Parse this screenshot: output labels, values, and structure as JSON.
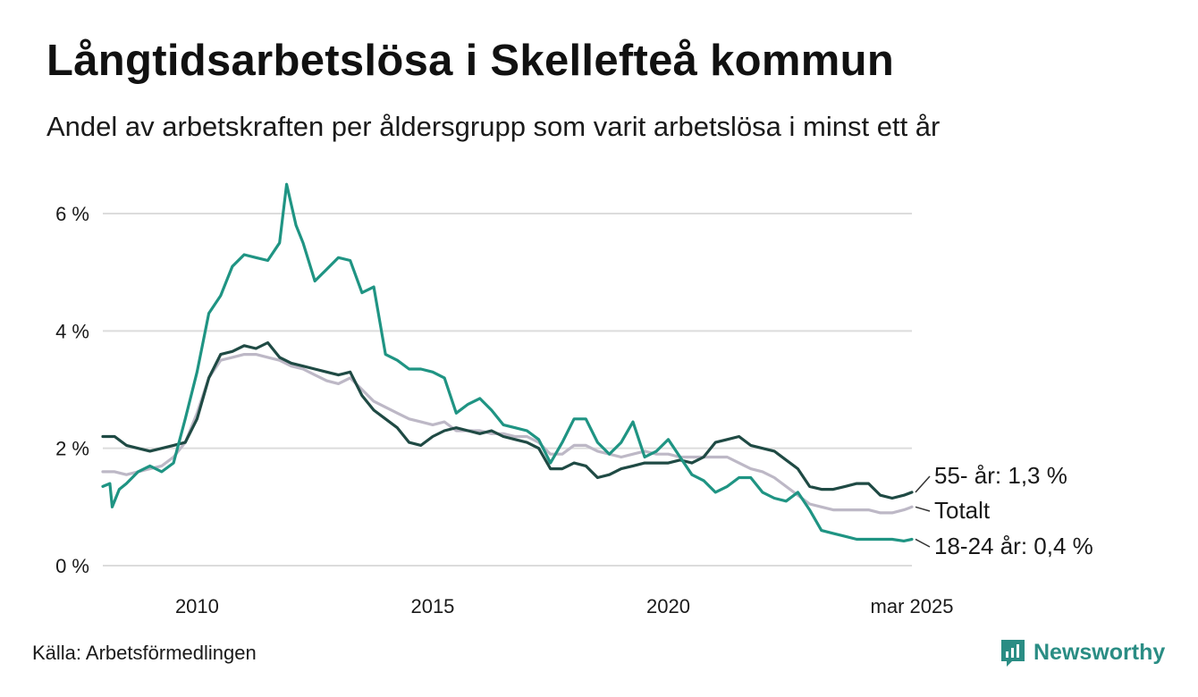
{
  "title": "Långtidsarbetslösa i Skellefteå kommun",
  "subtitle": "Andel av arbetskraften per åldersgrupp som varit arbetslösa i minst ett år",
  "source": "Källa: Arbetsförmedlingen",
  "brand": {
    "name": "Newsworthy",
    "color": "#2a8d84"
  },
  "chart_data": {
    "type": "line",
    "title": "Långtidsarbetslösa i Skellefteå kommun",
    "subtitle": "Andel av arbetskraften per åldersgrupp som varit arbetslösa i minst ett år",
    "xlabel": "",
    "ylabel": "",
    "xlim": [
      2008.0,
      2025.17
    ],
    "ylim": [
      0,
      6.5
    ],
    "grid": true,
    "legend": "direct labels at line ends",
    "x_ticks": [
      {
        "value": 2010,
        "label": "2010"
      },
      {
        "value": 2015,
        "label": "2015"
      },
      {
        "value": 2020,
        "label": "2020"
      },
      {
        "value": 2025.17,
        "label": "mar 2025"
      }
    ],
    "y_ticks": [
      {
        "value": 0,
        "label": "0 %"
      },
      {
        "value": 2,
        "label": "2 %"
      },
      {
        "value": 4,
        "label": "4 %"
      },
      {
        "value": 6,
        "label": "6 %"
      }
    ],
    "end_labels": [
      {
        "series": "55- år",
        "text": "55- år: 1,3 %"
      },
      {
        "series": "Totalt",
        "text": "Totalt"
      },
      {
        "series": "18-24 år",
        "text": "18-24 år: 0,4 %"
      }
    ],
    "series": [
      {
        "name": "Totalt",
        "color": "#bdb8c6",
        "points": [
          [
            2008.0,
            1.6
          ],
          [
            2008.25,
            1.6
          ],
          [
            2008.5,
            1.55
          ],
          [
            2008.75,
            1.6
          ],
          [
            2009.0,
            1.65
          ],
          [
            2009.25,
            1.7
          ],
          [
            2009.5,
            1.85
          ],
          [
            2009.75,
            2.1
          ],
          [
            2010.0,
            2.6
          ],
          [
            2010.25,
            3.2
          ],
          [
            2010.5,
            3.5
          ],
          [
            2010.75,
            3.55
          ],
          [
            2011.0,
            3.6
          ],
          [
            2011.25,
            3.6
          ],
          [
            2011.5,
            3.55
          ],
          [
            2011.75,
            3.5
          ],
          [
            2012.0,
            3.4
          ],
          [
            2012.25,
            3.35
          ],
          [
            2012.5,
            3.25
          ],
          [
            2012.75,
            3.15
          ],
          [
            2013.0,
            3.1
          ],
          [
            2013.25,
            3.2
          ],
          [
            2013.5,
            3.0
          ],
          [
            2013.75,
            2.8
          ],
          [
            2014.0,
            2.7
          ],
          [
            2014.25,
            2.6
          ],
          [
            2014.5,
            2.5
          ],
          [
            2014.75,
            2.45
          ],
          [
            2015.0,
            2.4
          ],
          [
            2015.25,
            2.45
          ],
          [
            2015.5,
            2.3
          ],
          [
            2015.75,
            2.3
          ],
          [
            2016.0,
            2.3
          ],
          [
            2016.25,
            2.25
          ],
          [
            2016.5,
            2.25
          ],
          [
            2016.75,
            2.2
          ],
          [
            2017.0,
            2.2
          ],
          [
            2017.25,
            2.1
          ],
          [
            2017.5,
            1.9
          ],
          [
            2017.75,
            1.9
          ],
          [
            2018.0,
            2.05
          ],
          [
            2018.25,
            2.05
          ],
          [
            2018.5,
            1.95
          ],
          [
            2018.75,
            1.9
          ],
          [
            2019.0,
            1.85
          ],
          [
            2019.25,
            1.9
          ],
          [
            2019.5,
            1.95
          ],
          [
            2019.75,
            1.9
          ],
          [
            2020.0,
            1.9
          ],
          [
            2020.25,
            1.85
          ],
          [
            2020.5,
            1.85
          ],
          [
            2020.75,
            1.85
          ],
          [
            2021.0,
            1.85
          ],
          [
            2021.25,
            1.85
          ],
          [
            2021.5,
            1.75
          ],
          [
            2021.75,
            1.65
          ],
          [
            2022.0,
            1.6
          ],
          [
            2022.25,
            1.5
          ],
          [
            2022.5,
            1.35
          ],
          [
            2022.75,
            1.2
          ],
          [
            2023.0,
            1.05
          ],
          [
            2023.25,
            1.0
          ],
          [
            2023.5,
            0.95
          ],
          [
            2023.75,
            0.95
          ],
          [
            2024.0,
            0.95
          ],
          [
            2024.25,
            0.95
          ],
          [
            2024.5,
            0.9
          ],
          [
            2024.75,
            0.9
          ],
          [
            2025.0,
            0.95
          ],
          [
            2025.17,
            1.0
          ]
        ]
      },
      {
        "name": "55- år",
        "color": "#1f4a44",
        "points": [
          [
            2008.0,
            2.2
          ],
          [
            2008.25,
            2.2
          ],
          [
            2008.5,
            2.05
          ],
          [
            2008.75,
            2.0
          ],
          [
            2009.0,
            1.95
          ],
          [
            2009.25,
            2.0
          ],
          [
            2009.5,
            2.05
          ],
          [
            2009.75,
            2.1
          ],
          [
            2010.0,
            2.5
          ],
          [
            2010.25,
            3.2
          ],
          [
            2010.5,
            3.6
          ],
          [
            2010.75,
            3.65
          ],
          [
            2011.0,
            3.75
          ],
          [
            2011.25,
            3.7
          ],
          [
            2011.5,
            3.8
          ],
          [
            2011.75,
            3.55
          ],
          [
            2012.0,
            3.45
          ],
          [
            2012.25,
            3.4
          ],
          [
            2012.5,
            3.35
          ],
          [
            2012.75,
            3.3
          ],
          [
            2013.0,
            3.25
          ],
          [
            2013.25,
            3.3
          ],
          [
            2013.5,
            2.9
          ],
          [
            2013.75,
            2.65
          ],
          [
            2014.0,
            2.5
          ],
          [
            2014.25,
            2.35
          ],
          [
            2014.5,
            2.1
          ],
          [
            2014.75,
            2.05
          ],
          [
            2015.0,
            2.2
          ],
          [
            2015.25,
            2.3
          ],
          [
            2015.5,
            2.35
          ],
          [
            2015.75,
            2.3
          ],
          [
            2016.0,
            2.25
          ],
          [
            2016.25,
            2.3
          ],
          [
            2016.5,
            2.2
          ],
          [
            2016.75,
            2.15
          ],
          [
            2017.0,
            2.1
          ],
          [
            2017.25,
            2.0
          ],
          [
            2017.5,
            1.65
          ],
          [
            2017.75,
            1.65
          ],
          [
            2018.0,
            1.75
          ],
          [
            2018.25,
            1.7
          ],
          [
            2018.5,
            1.5
          ],
          [
            2018.75,
            1.55
          ],
          [
            2019.0,
            1.65
          ],
          [
            2019.25,
            1.7
          ],
          [
            2019.5,
            1.75
          ],
          [
            2019.75,
            1.75
          ],
          [
            2020.0,
            1.75
          ],
          [
            2020.25,
            1.8
          ],
          [
            2020.5,
            1.75
          ],
          [
            2020.75,
            1.85
          ],
          [
            2021.0,
            2.1
          ],
          [
            2021.25,
            2.15
          ],
          [
            2021.5,
            2.2
          ],
          [
            2021.75,
            2.05
          ],
          [
            2022.0,
            2.0
          ],
          [
            2022.25,
            1.95
          ],
          [
            2022.5,
            1.8
          ],
          [
            2022.75,
            1.65
          ],
          [
            2023.0,
            1.35
          ],
          [
            2023.25,
            1.3
          ],
          [
            2023.5,
            1.3
          ],
          [
            2023.75,
            1.35
          ],
          [
            2024.0,
            1.4
          ],
          [
            2024.25,
            1.4
          ],
          [
            2024.5,
            1.2
          ],
          [
            2024.75,
            1.15
          ],
          [
            2025.0,
            1.2
          ],
          [
            2025.17,
            1.25
          ]
        ]
      },
      {
        "name": "18-24 år",
        "color": "#1f9483",
        "points": [
          [
            2008.0,
            1.35
          ],
          [
            2008.15,
            1.4
          ],
          [
            2008.2,
            1.0
          ],
          [
            2008.35,
            1.3
          ],
          [
            2008.5,
            1.4
          ],
          [
            2008.75,
            1.6
          ],
          [
            2009.0,
            1.7
          ],
          [
            2009.25,
            1.6
          ],
          [
            2009.5,
            1.75
          ],
          [
            2009.75,
            2.5
          ],
          [
            2010.0,
            3.3
          ],
          [
            2010.25,
            4.3
          ],
          [
            2010.5,
            4.6
          ],
          [
            2010.75,
            5.1
          ],
          [
            2011.0,
            5.3
          ],
          [
            2011.25,
            5.25
          ],
          [
            2011.5,
            5.2
          ],
          [
            2011.75,
            5.5
          ],
          [
            2011.9,
            6.5
          ],
          [
            2012.1,
            5.8
          ],
          [
            2012.25,
            5.5
          ],
          [
            2012.5,
            4.85
          ],
          [
            2012.75,
            5.05
          ],
          [
            2013.0,
            5.25
          ],
          [
            2013.25,
            5.2
          ],
          [
            2013.5,
            4.65
          ],
          [
            2013.75,
            4.75
          ],
          [
            2014.0,
            3.6
          ],
          [
            2014.25,
            3.5
          ],
          [
            2014.5,
            3.35
          ],
          [
            2014.75,
            3.35
          ],
          [
            2015.0,
            3.3
          ],
          [
            2015.25,
            3.2
          ],
          [
            2015.5,
            2.6
          ],
          [
            2015.75,
            2.75
          ],
          [
            2016.0,
            2.85
          ],
          [
            2016.25,
            2.65
          ],
          [
            2016.5,
            2.4
          ],
          [
            2016.75,
            2.35
          ],
          [
            2017.0,
            2.3
          ],
          [
            2017.25,
            2.15
          ],
          [
            2017.5,
            1.75
          ],
          [
            2017.75,
            2.1
          ],
          [
            2018.0,
            2.5
          ],
          [
            2018.25,
            2.5
          ],
          [
            2018.5,
            2.1
          ],
          [
            2018.75,
            1.9
          ],
          [
            2019.0,
            2.1
          ],
          [
            2019.25,
            2.45
          ],
          [
            2019.5,
            1.85
          ],
          [
            2019.75,
            1.95
          ],
          [
            2020.0,
            2.15
          ],
          [
            2020.25,
            1.85
          ],
          [
            2020.5,
            1.55
          ],
          [
            2020.75,
            1.45
          ],
          [
            2021.0,
            1.25
          ],
          [
            2021.25,
            1.35
          ],
          [
            2021.5,
            1.5
          ],
          [
            2021.75,
            1.5
          ],
          [
            2022.0,
            1.25
          ],
          [
            2022.25,
            1.15
          ],
          [
            2022.5,
            1.1
          ],
          [
            2022.75,
            1.25
          ],
          [
            2023.0,
            0.95
          ],
          [
            2023.25,
            0.6
          ],
          [
            2023.5,
            0.55
          ],
          [
            2023.75,
            0.5
          ],
          [
            2024.0,
            0.45
          ],
          [
            2024.25,
            0.45
          ],
          [
            2024.5,
            0.45
          ],
          [
            2024.75,
            0.45
          ],
          [
            2025.0,
            0.42
          ],
          [
            2025.17,
            0.45
          ]
        ]
      }
    ]
  }
}
